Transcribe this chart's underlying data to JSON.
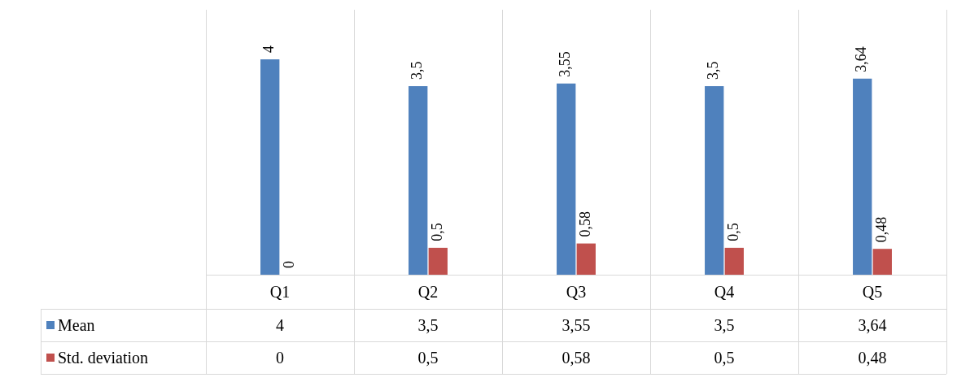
{
  "chart_data": {
    "type": "bar",
    "categories": [
      "Q1",
      "Q2",
      "Q3",
      "Q4",
      "Q5"
    ],
    "ylim": [
      0,
      4.92
    ],
    "tick_labels": "x",
    "grid": "x",
    "legend": "bottom",
    "series": [
      {
        "name": "Mean",
        "color": "#4f81bd",
        "values": [
          4,
          3.5,
          3.55,
          3.5,
          3.64
        ],
        "value_labels": [
          "4",
          "3,5",
          "3,55",
          "3,5",
          "3,64"
        ]
      },
      {
        "name": "Std. deviation",
        "color": "#c0504d",
        "values": [
          0,
          0.5,
          0.58,
          0.5,
          0.48
        ],
        "value_labels": [
          "0",
          "0,5",
          "0,58",
          "0,5",
          "0,48"
        ]
      }
    ]
  }
}
